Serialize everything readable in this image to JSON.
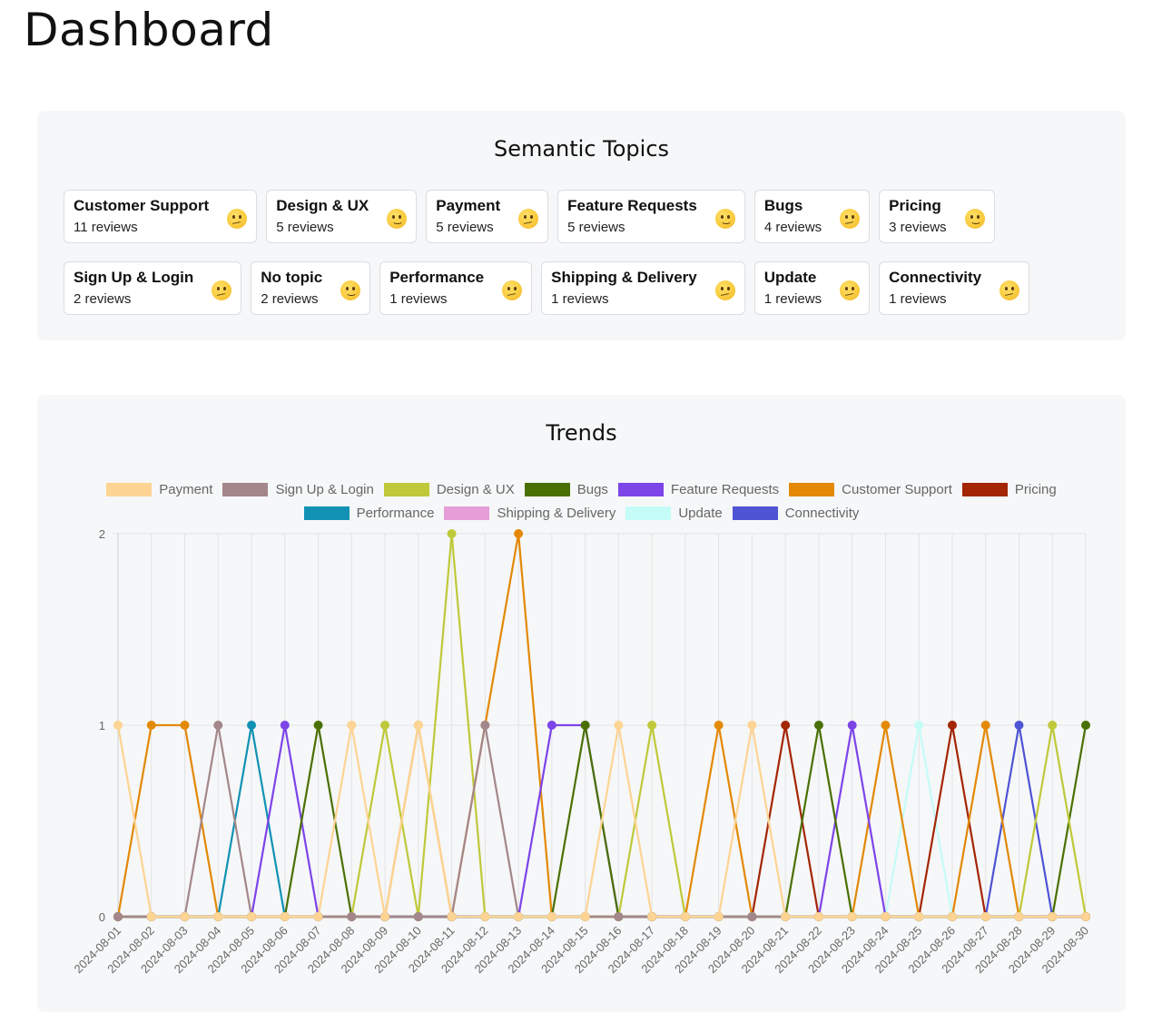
{
  "page": {
    "title": "Dashboard"
  },
  "topics_panel": {
    "title": "Semantic Topics",
    "topics": [
      {
        "name": "Customer Support",
        "count": "11 reviews",
        "sentiment": "confused"
      },
      {
        "name": "Design & UX",
        "count": "5 reviews",
        "sentiment": "slight-smile"
      },
      {
        "name": "Payment",
        "count": "5 reviews",
        "sentiment": "confused"
      },
      {
        "name": "Feature Requests",
        "count": "5 reviews",
        "sentiment": "slight-smile"
      },
      {
        "name": "Bugs",
        "count": "4 reviews",
        "sentiment": "confused"
      },
      {
        "name": "Pricing",
        "count": "3 reviews",
        "sentiment": "slight-smile"
      },
      {
        "name": "Sign Up & Login",
        "count": "2 reviews",
        "sentiment": "confused"
      },
      {
        "name": "No topic",
        "count": "2 reviews",
        "sentiment": "slight-smile"
      },
      {
        "name": "Performance",
        "count": "1 reviews",
        "sentiment": "confused"
      },
      {
        "name": "Shipping & Delivery",
        "count": "1 reviews",
        "sentiment": "confused"
      },
      {
        "name": "Update",
        "count": "1 reviews",
        "sentiment": "confused"
      },
      {
        "name": "Connectivity",
        "count": "1 reviews",
        "sentiment": "confused"
      }
    ]
  },
  "trends_panel": {
    "title": "Trends",
    "chart_data": {
      "type": "line",
      "x": [
        "2024-08-01",
        "2024-08-02",
        "2024-08-03",
        "2024-08-04",
        "2024-08-05",
        "2024-08-06",
        "2024-08-07",
        "2024-08-08",
        "2024-08-09",
        "2024-08-10",
        "2024-08-11",
        "2024-08-12",
        "2024-08-13",
        "2024-08-14",
        "2024-08-15",
        "2024-08-16",
        "2024-08-17",
        "2024-08-18",
        "2024-08-19",
        "2024-08-20",
        "2024-08-21",
        "2024-08-22",
        "2024-08-23",
        "2024-08-24",
        "2024-08-25",
        "2024-08-26",
        "2024-08-27",
        "2024-08-28",
        "2024-08-29",
        "2024-08-30"
      ],
      "ylim": [
        0,
        2
      ],
      "yticks": [
        0,
        1,
        2
      ],
      "grid": true,
      "legend_position": "top",
      "series": [
        {
          "name": "Payment",
          "color": "#fdd493",
          "values": [
            1,
            0,
            0,
            0,
            0,
            0,
            0,
            1,
            0,
            1,
            0,
            0,
            0,
            0,
            0,
            1,
            0,
            0,
            0,
            1,
            0,
            0,
            0,
            0,
            0,
            0,
            0,
            0,
            0,
            0
          ]
        },
        {
          "name": "Sign Up & Login",
          "color": "#a3878b",
          "values": [
            0,
            0,
            0,
            1,
            0,
            0,
            0,
            0,
            0,
            0,
            0,
            1,
            0,
            0,
            0,
            0,
            0,
            0,
            0,
            0,
            0,
            0,
            0,
            0,
            0,
            0,
            0,
            0,
            0,
            0
          ]
        },
        {
          "name": "Design & UX",
          "color": "#bfc93a",
          "values": [
            0,
            0,
            0,
            0,
            0,
            0,
            0,
            0,
            1,
            0,
            2,
            0,
            0,
            0,
            0,
            0,
            1,
            0,
            0,
            0,
            0,
            0,
            0,
            0,
            0,
            0,
            0,
            0,
            1,
            0
          ]
        },
        {
          "name": "Bugs",
          "color": "#4a7004",
          "values": [
            0,
            0,
            0,
            0,
            0,
            0,
            1,
            0,
            0,
            0,
            0,
            0,
            0,
            0,
            1,
            0,
            0,
            0,
            0,
            0,
            0,
            1,
            0,
            0,
            0,
            0,
            0,
            0,
            0,
            1
          ]
        },
        {
          "name": "Feature Requests",
          "color": "#7d44e8",
          "values": [
            0,
            0,
            0,
            0,
            0,
            1,
            0,
            0,
            0,
            0,
            0,
            0,
            0,
            1,
            1,
            0,
            0,
            0,
            0,
            0,
            0,
            0,
            1,
            0,
            0,
            0,
            0,
            0,
            0,
            0
          ]
        },
        {
          "name": "Customer Support",
          "color": "#e38906",
          "values": [
            0,
            1,
            1,
            0,
            0,
            0,
            0,
            0,
            0,
            1,
            0,
            1,
            2,
            0,
            0,
            0,
            0,
            0,
            1,
            0,
            0,
            0,
            0,
            1,
            0,
            0,
            1,
            0,
            0,
            0
          ]
        },
        {
          "name": "Pricing",
          "color": "#a32605",
          "values": [
            0,
            0,
            0,
            0,
            0,
            0,
            0,
            0,
            0,
            0,
            0,
            0,
            0,
            0,
            0,
            0,
            0,
            0,
            0,
            0,
            1,
            0,
            0,
            0,
            0,
            1,
            0,
            0,
            0,
            0
          ]
        },
        {
          "name": "Performance",
          "color": "#1192b4",
          "values": [
            0,
            0,
            0,
            0,
            1,
            0,
            0,
            0,
            0,
            0,
            0,
            0,
            0,
            0,
            0,
            0,
            0,
            0,
            0,
            0,
            0,
            0,
            0,
            0,
            0,
            0,
            0,
            0,
            0,
            0
          ]
        },
        {
          "name": "Shipping & Delivery",
          "color": "#e59ed8",
          "values": [
            0,
            0,
            0,
            0,
            0,
            0,
            0,
            0,
            0,
            0,
            0,
            0,
            0,
            0,
            0,
            0,
            0,
            0,
            0,
            0,
            0,
            0,
            0,
            0,
            0,
            0,
            0,
            0,
            0,
            0
          ]
        },
        {
          "name": "Update",
          "color": "#c5fcf8",
          "values": [
            0,
            0,
            0,
            0,
            0,
            0,
            0,
            0,
            0,
            0,
            0,
            0,
            0,
            0,
            0,
            0,
            0,
            0,
            0,
            0,
            0,
            0,
            0,
            0,
            1,
            0,
            0,
            0,
            0,
            0
          ]
        },
        {
          "name": "Connectivity",
          "color": "#4f54d4",
          "values": [
            0,
            0,
            0,
            0,
            0,
            0,
            0,
            0,
            0,
            0,
            0,
            0,
            0,
            0,
            0,
            0,
            0,
            0,
            0,
            0,
            0,
            0,
            0,
            0,
            0,
            0,
            0,
            1,
            0,
            0
          ]
        }
      ]
    }
  }
}
